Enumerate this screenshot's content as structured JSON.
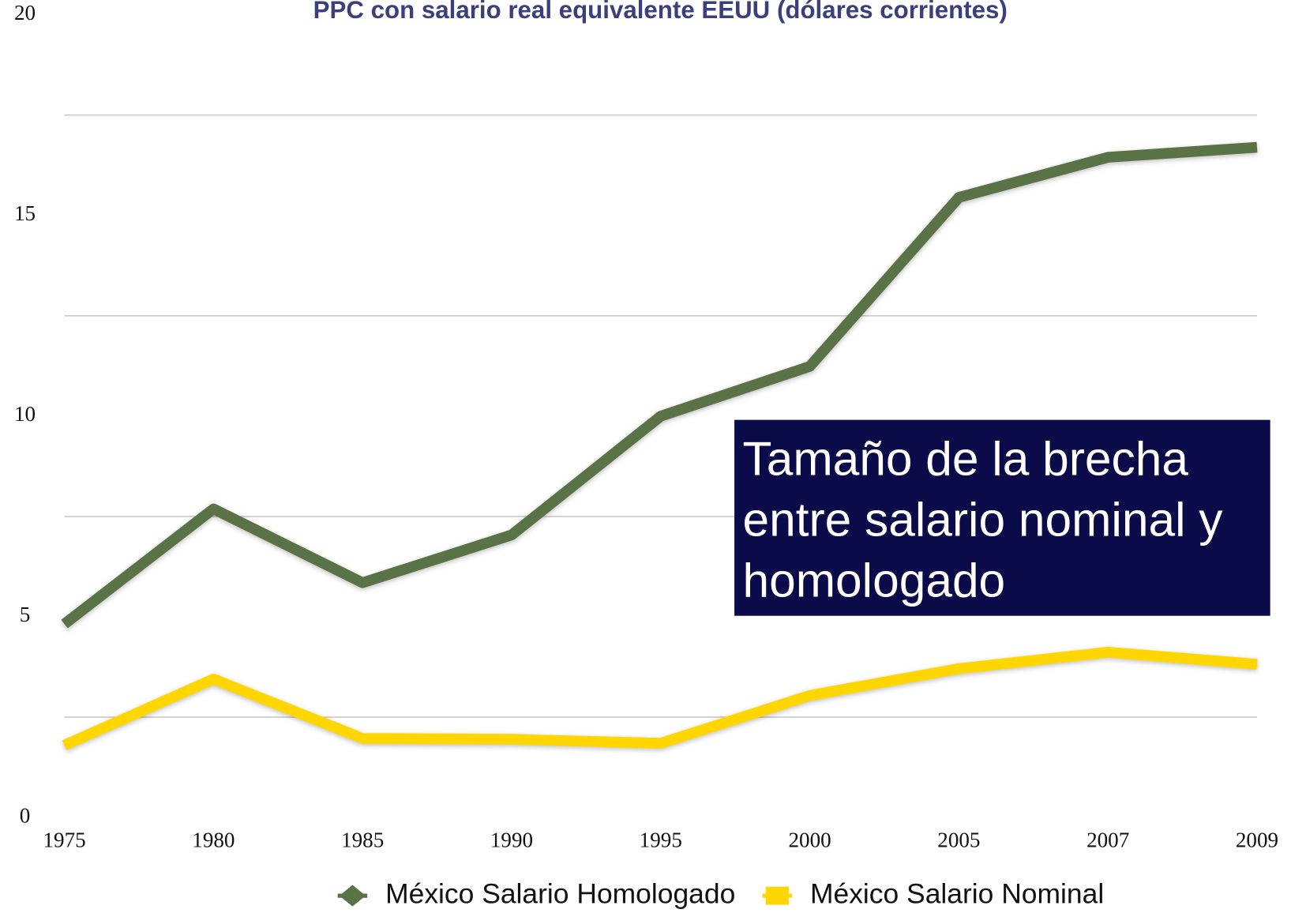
{
  "chart_data": {
    "type": "line",
    "title": "PPC con salario real equivalente EEUU (dólares corrientes)",
    "categories": [
      "1975",
      "1980",
      "1985",
      "1990",
      "1995",
      "2000",
      "2005",
      "2007",
      "2009"
    ],
    "series": [
      {
        "name": "México Salario Homologado",
        "color": "#5a7346",
        "marker": "diamond",
        "values": [
          4.82,
          7.69,
          5.85,
          7.04,
          10.0,
          11.24,
          15.45,
          16.45,
          16.7
        ]
      },
      {
        "name": "México Salario Nominal",
        "color": "#ffd600",
        "marker": "square",
        "values": [
          1.8,
          3.45,
          1.97,
          1.95,
          1.85,
          3.04,
          3.71,
          4.12,
          3.82
        ]
      }
    ],
    "ylim": [
      0,
      20
    ],
    "yticks": [
      0,
      5,
      10,
      15,
      20
    ],
    "grid_lines": [
      2.5,
      7.5,
      12.5,
      17.5
    ],
    "grid": true,
    "legend": "bottom",
    "annotation": {
      "lines": [
        "Tamaño de la brecha",
        "entre salario nominal y",
        "homologado"
      ],
      "color": "#0a0b48"
    }
  }
}
